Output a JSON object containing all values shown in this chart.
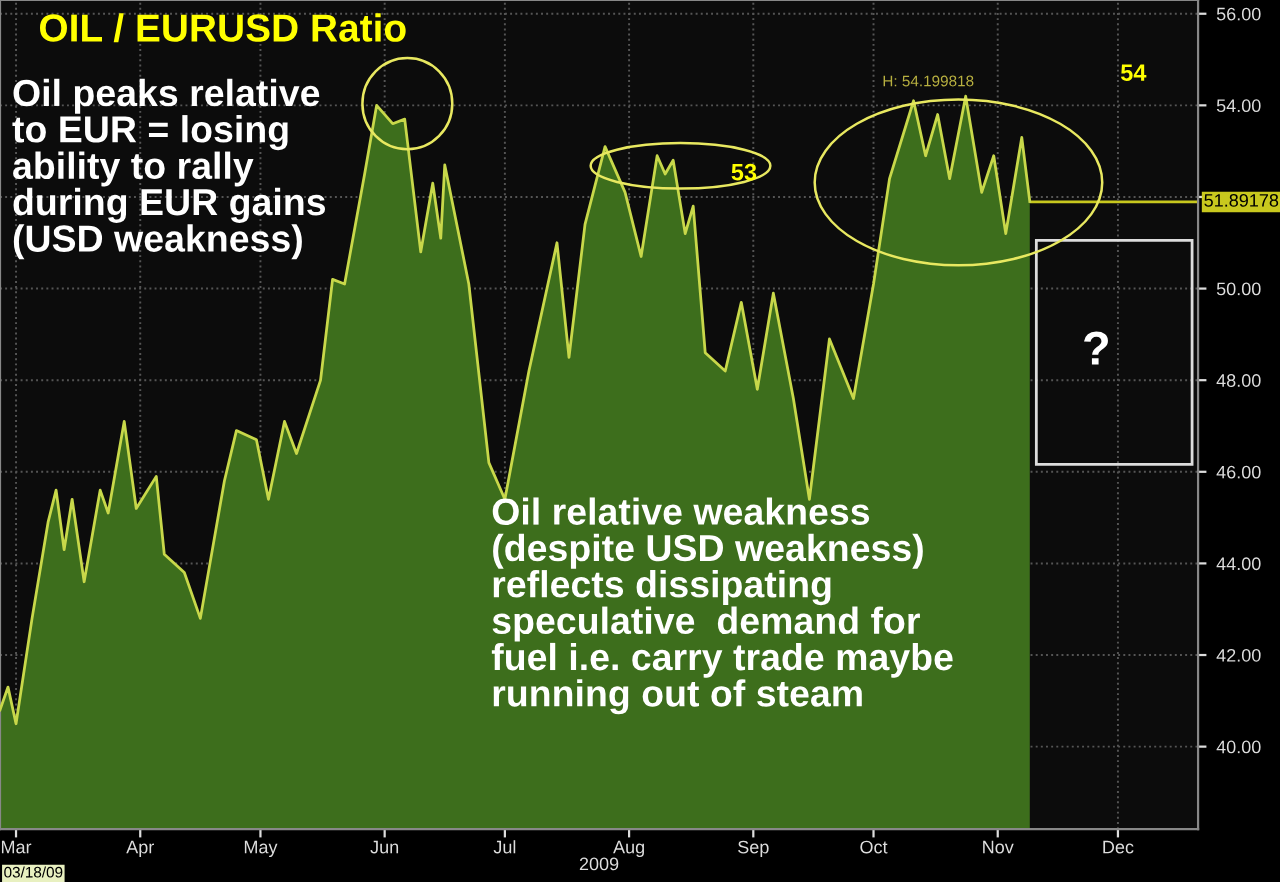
{
  "chart_data": {
    "type": "area",
    "title": "OIL / EURUSD Ratio",
    "xlabel": "2009",
    "x": [
      "2009-03-01",
      "2009-03-03",
      "2009-03-05",
      "2009-03-09",
      "2009-03-13",
      "2009-03-15",
      "2009-03-17",
      "2009-03-19",
      "2009-03-22",
      "2009-03-26",
      "2009-03-28",
      "2009-04-01",
      "2009-04-04",
      "2009-04-09",
      "2009-04-11",
      "2009-04-16",
      "2009-04-20",
      "2009-04-26",
      "2009-04-29",
      "2009-05-04",
      "2009-05-07",
      "2009-05-11",
      "2009-05-14",
      "2009-05-20",
      "2009-05-23",
      "2009-05-26",
      "2009-05-31",
      "2009-06-03",
      "2009-06-07",
      "2009-06-10",
      "2009-06-14",
      "2009-06-17",
      "2009-06-19",
      "2009-06-20",
      "2009-06-26",
      "2009-07-01",
      "2009-07-05",
      "2009-07-11",
      "2009-07-18",
      "2009-07-21",
      "2009-07-25",
      "2009-07-30",
      "2009-08-04",
      "2009-08-08",
      "2009-08-12",
      "2009-08-14",
      "2009-08-16",
      "2009-08-19",
      "2009-08-21",
      "2009-08-24",
      "2009-08-29",
      "2009-09-02",
      "2009-09-06",
      "2009-09-10",
      "2009-09-15",
      "2009-09-19",
      "2009-09-24",
      "2009-09-30",
      "2009-10-05",
      "2009-10-09",
      "2009-10-15",
      "2009-10-18",
      "2009-10-21",
      "2009-10-24",
      "2009-10-28",
      "2009-11-01",
      "2009-11-04",
      "2009-11-07",
      "2009-11-11",
      "2009-11-13"
    ],
    "series": [
      {
        "color": "#3d6e1c",
        "values": [
          40.8,
          41.3,
          40.5,
          42.8,
          44.9,
          45.6,
          44.3,
          45.4,
          43.6,
          45.6,
          45.1,
          47.1,
          45.2,
          45.9,
          44.2,
          43.8,
          42.8,
          45.8,
          46.9,
          46.7,
          45.4,
          47.1,
          46.4,
          48.0,
          50.2,
          50.1,
          52.5,
          54.0,
          53.6,
          53.7,
          50.8,
          52.3,
          51.1,
          52.7,
          50.1,
          46.2,
          45.4,
          48.2,
          51.0,
          48.5,
          51.4,
          53.1,
          52.1,
          50.7,
          52.9,
          52.5,
          52.8,
          51.2,
          51.8,
          48.6,
          48.2,
          49.7,
          47.8,
          49.9,
          47.6,
          45.4,
          48.9,
          47.6,
          50.1,
          52.4,
          54.1,
          52.9,
          53.8,
          52.4,
          54.2,
          52.1,
          52.9,
          51.2,
          53.3,
          51.9
        ]
      }
    ],
    "xlim": [
      "2009-03-01",
      "2009-12-25"
    ],
    "xticks": [
      {
        "value": "2009-03-05",
        "label": "Mar"
      },
      {
        "value": "2009-04-05",
        "label": "Apr"
      },
      {
        "value": "2009-05-05",
        "label": "May"
      },
      {
        "value": "2009-06-05",
        "label": "Jun"
      },
      {
        "value": "2009-07-05",
        "label": "Jul"
      },
      {
        "value": "2009-08-05",
        "label": "Aug"
      },
      {
        "value": "2009-09-05",
        "label": "Sep"
      },
      {
        "value": "2009-10-05",
        "label": "Oct"
      },
      {
        "value": "2009-11-05",
        "label": "Nov"
      },
      {
        "value": "2009-12-05",
        "label": "Dec"
      }
    ],
    "ylim": [
      38.2,
      56.3
    ],
    "yticks": [
      {
        "value": 40,
        "label": "40.00"
      },
      {
        "value": 42,
        "label": "42.00"
      },
      {
        "value": 44,
        "label": "44.00"
      },
      {
        "value": 46,
        "label": "46.00"
      },
      {
        "value": 48,
        "label": "48.00"
      },
      {
        "value": 50,
        "label": "50.00"
      },
      {
        "value": 52,
        "label": null
      },
      {
        "value": 54,
        "label": "54.00"
      },
      {
        "value": 56,
        "label": "56.00"
      }
    ],
    "ref_lines": [
      {
        "axis": "y",
        "value": 51.89178,
        "label": "51.89178",
        "color": "#c8c81e"
      }
    ],
    "grid": true,
    "annotations": [
      "Oil peaks relative\nto EUR = losing\nability to rally\nduring EUR gains\n(USD weakness)",
      "Oil relative weakness\n(despite USD weakness)\nreflects dissipating\nspeculative  demand for\nfuel i.e. carry trade maybe\nrunning out of steam",
      {
        "text": "H: 54.199818",
        "x": "2009-10-28",
        "y": 54.2
      },
      "?",
      "03/18/09",
      "53",
      "54"
    ]
  }
}
